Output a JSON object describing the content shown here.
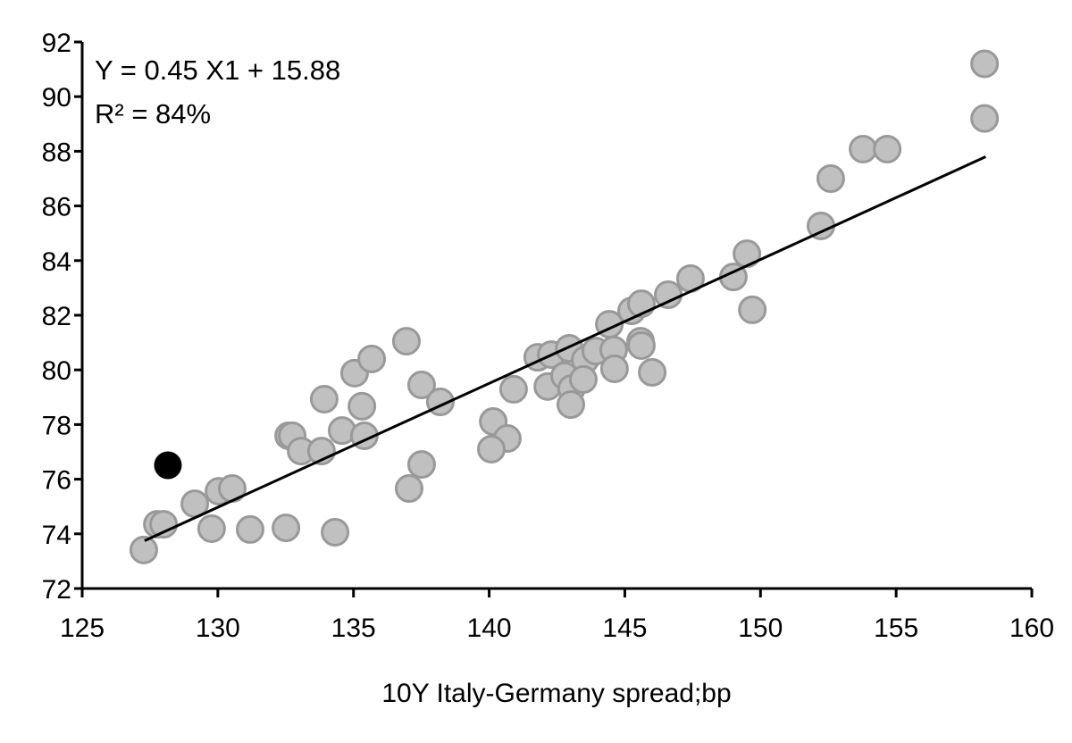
{
  "chart_data": {
    "type": "scatter",
    "title": "",
    "xlabel": "10Y Italy-Germany spread;bp",
    "ylabel": "",
    "xlim": [
      125,
      160
    ],
    "ylim": [
      72,
      92
    ],
    "xticks": [
      125,
      130,
      135,
      140,
      145,
      150,
      155,
      160
    ],
    "yticks": [
      72,
      74,
      76,
      78,
      80,
      82,
      84,
      86,
      88,
      90,
      92
    ],
    "grid": false,
    "annotations": [
      "Y = 0.45 X1 + 15.88",
      "R² = 84%"
    ],
    "colors": {
      "points": "#c0c0c0",
      "point_edge": "#999999",
      "highlight": "#000000",
      "trendline": "#000000"
    },
    "points": [
      [
        127.27,
        73.41
      ],
      [
        127.77,
        74.35
      ],
      [
        128.0,
        74.35
      ],
      [
        129.15,
        75.1
      ],
      [
        129.77,
        74.19
      ],
      [
        130.04,
        75.56
      ],
      [
        130.53,
        75.66
      ],
      [
        131.19,
        74.16
      ],
      [
        132.51,
        74.22
      ],
      [
        134.32,
        74.06
      ],
      [
        133.92,
        78.93
      ],
      [
        135.04,
        79.88
      ],
      [
        135.67,
        80.4
      ],
      [
        136.95,
        81.05
      ],
      [
        137.51,
        79.45
      ],
      [
        138.2,
        78.83
      ],
      [
        135.31,
        78.67
      ],
      [
        134.58,
        77.78
      ],
      [
        135.4,
        77.59
      ],
      [
        132.61,
        77.59
      ],
      [
        132.74,
        77.59
      ],
      [
        133.07,
        77.03
      ],
      [
        133.82,
        77.03
      ],
      [
        137.51,
        76.54
      ],
      [
        137.05,
        75.66
      ],
      [
        140.15,
        78.11
      ],
      [
        140.67,
        77.49
      ],
      [
        140.08,
        77.1
      ],
      [
        140.9,
        79.29
      ],
      [
        141.79,
        80.46
      ],
      [
        142.29,
        80.56
      ],
      [
        142.95,
        80.79
      ],
      [
        142.16,
        79.39
      ],
      [
        142.78,
        79.78
      ],
      [
        143.04,
        79.32
      ],
      [
        143.01,
        78.73
      ],
      [
        143.54,
        80.37
      ],
      [
        143.93,
        80.69
      ],
      [
        143.47,
        79.65
      ],
      [
        144.59,
        80.73
      ],
      [
        144.62,
        80.04
      ],
      [
        144.43,
        81.67
      ],
      [
        145.25,
        82.16
      ],
      [
        145.61,
        82.42
      ],
      [
        145.58,
        81.05
      ],
      [
        145.61,
        80.89
      ],
      [
        146.01,
        79.91
      ],
      [
        146.6,
        82.75
      ],
      [
        147.42,
        83.34
      ],
      [
        149.0,
        83.4
      ],
      [
        149.5,
        84.25
      ],
      [
        149.7,
        82.2
      ],
      [
        152.23,
        85.27
      ],
      [
        152.59,
        87.0
      ],
      [
        153.78,
        88.08
      ],
      [
        154.67,
        88.08
      ],
      [
        158.26,
        89.2
      ],
      [
        158.26,
        91.2
      ]
    ],
    "highlight_point": [
      128.16,
      76.51
    ],
    "trendline": [
      [
        127.3,
        73.75
      ],
      [
        158.3,
        87.8
      ]
    ]
  }
}
